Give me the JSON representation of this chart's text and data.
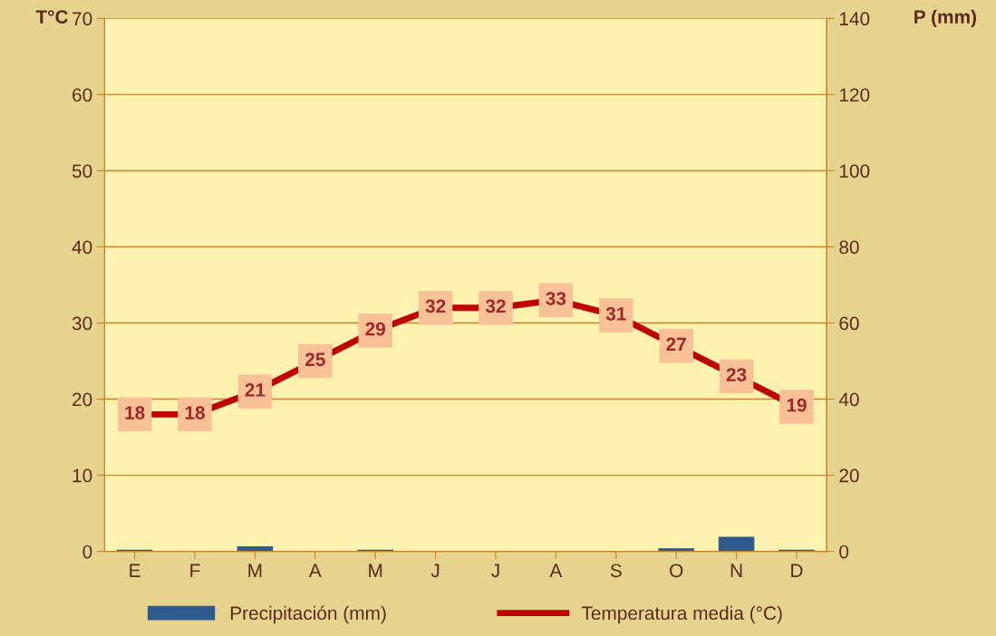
{
  "chart_data": {
    "type": "line",
    "ylabel": "T°C",
    "y2label": "P (mm)",
    "categories": [
      "E",
      "F",
      "M",
      "A",
      "M",
      "J",
      "J",
      "A",
      "S",
      "O",
      "N",
      "D"
    ],
    "series": [
      {
        "name": "Precipitación (mm)",
        "type": "bar",
        "axis": "y2",
        "color": "#2e5a8c",
        "values": [
          0.3,
          0,
          1.2,
          0,
          0.3,
          0,
          0,
          0,
          0,
          0.7,
          3.7,
          0.3
        ]
      },
      {
        "name": "Temperatura media (°C)",
        "color": "#c00000",
        "values": [
          18,
          18,
          21,
          25,
          29,
          32,
          32,
          33,
          31,
          27,
          23,
          19
        ],
        "data_labels": true
      }
    ],
    "ylim": [
      0,
      70
    ],
    "yticks": [
      0,
      10,
      20,
      30,
      40,
      50,
      60,
      70
    ],
    "y2lim": [
      0,
      140
    ],
    "y2ticks": [
      0,
      20,
      40,
      60,
      80,
      100,
      120,
      140
    ],
    "grid": "y",
    "legend": "bottom",
    "marker": "square",
    "line_style": "solid"
  }
}
